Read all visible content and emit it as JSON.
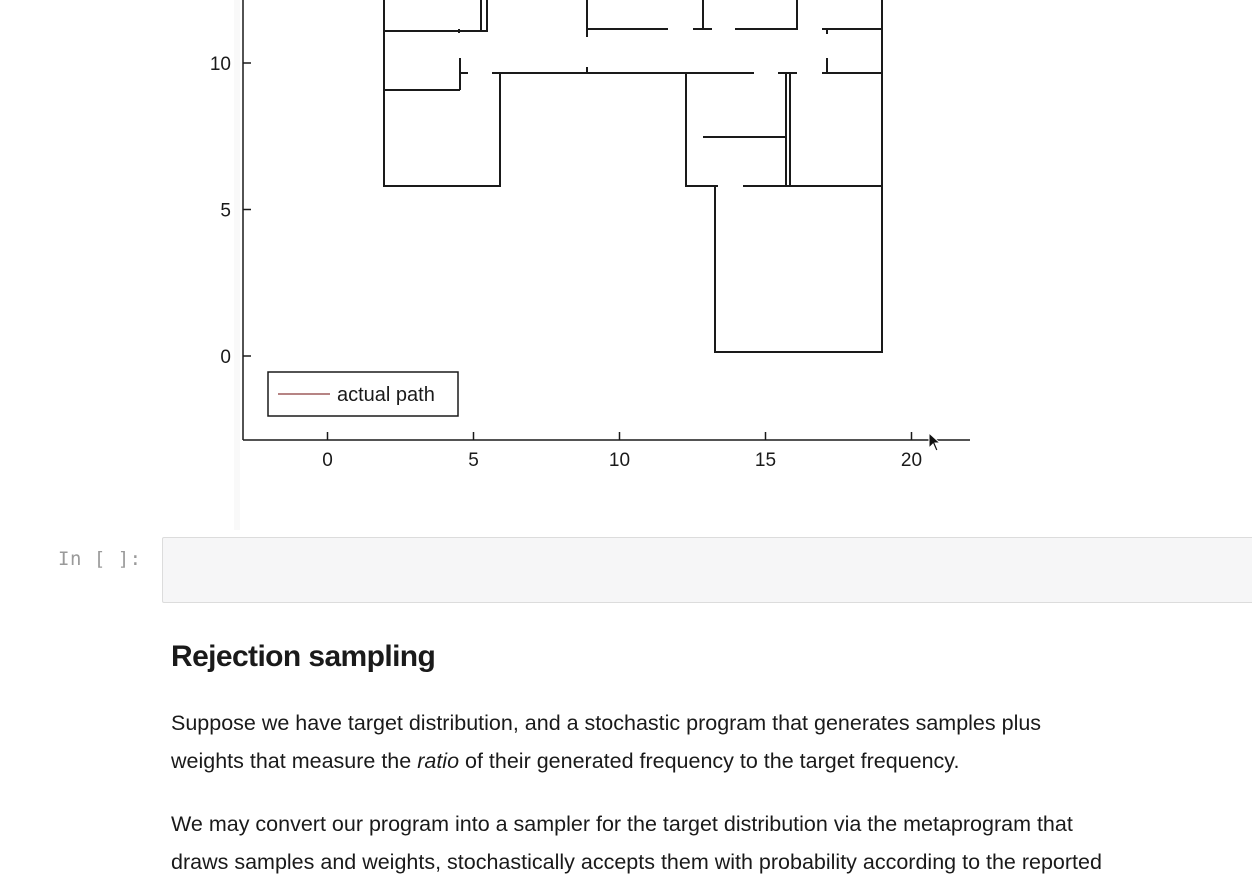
{
  "plot": {
    "legend_label": "actual path",
    "x_ticks": [
      "0",
      "5",
      "10",
      "15",
      "20"
    ],
    "y_ticks": [
      "0",
      "5",
      "10"
    ],
    "colors": {
      "path": "#8b3a3a",
      "wall": "#1a1a1a"
    }
  },
  "chart_data": {
    "type": "line",
    "x_ticks": [
      0,
      5,
      10,
      15,
      20
    ],
    "y_ticks": [
      0,
      5,
      10
    ],
    "xlim": [
      -3,
      22
    ],
    "ylim": [
      -3,
      12
    ],
    "grid": false,
    "legend": {
      "placement": "bottom-left",
      "entries": [
        "actual path"
      ]
    },
    "series": [
      {
        "name": "actual path",
        "color": "#8b3a3a",
        "values": []
      }
    ]
  },
  "cell": {
    "prompt": "In [ ]:"
  },
  "markdown": {
    "heading": "Rejection sampling",
    "p1_line1": "Suppose we have target distribution, and a stochastic program that generates samples plus",
    "p1_line2_a": "weights that measure the ",
    "p1_line2_em": "ratio",
    "p1_line2_b": " of their generated frequency to the target frequency.",
    "p2_line1": "We may convert our program into a sampler for the target distribution via the metaprogram that",
    "p2_line2": "draws samples and weights, stochastically accepts them with probability according to the reported"
  }
}
